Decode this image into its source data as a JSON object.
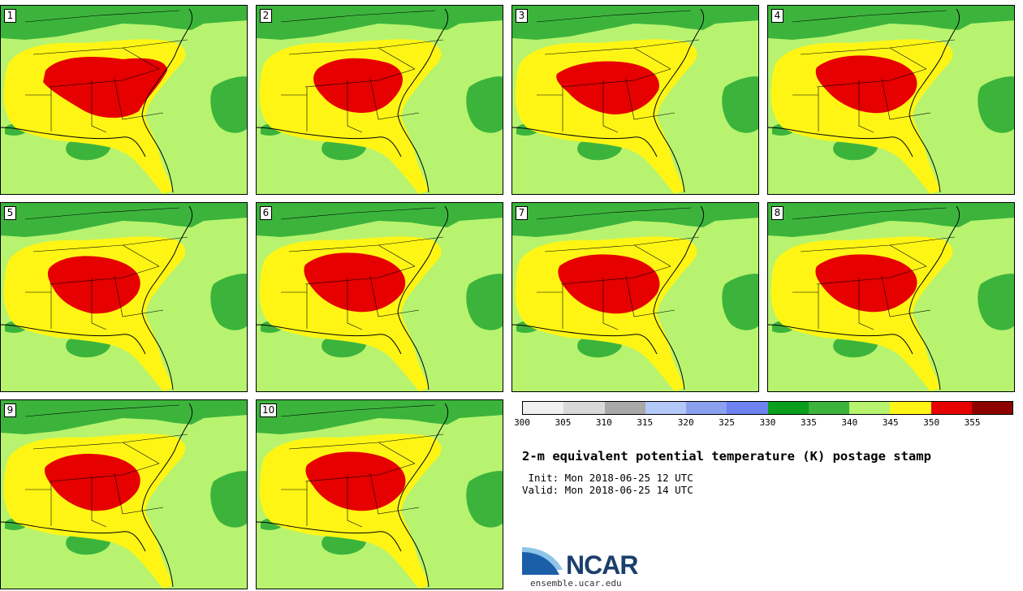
{
  "title": "2-m equivalent potential temperature (K) postage stamp",
  "init_text": " Init: Mon 2018-06-25 12 UTC",
  "valid_text": "Valid: Mon 2018-06-25 14 UTC",
  "members": [
    "1",
    "2",
    "3",
    "4",
    "5",
    "6",
    "7",
    "8",
    "9",
    "10"
  ],
  "colorbar": {
    "ticks": [
      "300",
      "305",
      "310",
      "315",
      "320",
      "325",
      "330",
      "335",
      "340",
      "345",
      "350",
      "355"
    ],
    "colors": [
      "#f0f0f0",
      "#d8d8d8",
      "#a8a8a8",
      "#b4c8f8",
      "#8ca0f0",
      "#6e82f0",
      "#0a9e1e",
      "#3cb43c",
      "#b7f36f",
      "#fff514",
      "#e60000",
      "#8c0000"
    ]
  },
  "logo": {
    "text": "NCAR",
    "url": "ensemble.ucar.edu",
    "colors": {
      "swoosh_dark": "#1b5fa8",
      "swoosh_light": "#8ec5e8",
      "text": "#1b3f6e"
    }
  },
  "map_colors": {
    "ocean_background": "#b7f36f",
    "dark_green": "#3cb43c",
    "yellow": "#fff514",
    "red": "#e60000",
    "border": "#000000"
  }
}
